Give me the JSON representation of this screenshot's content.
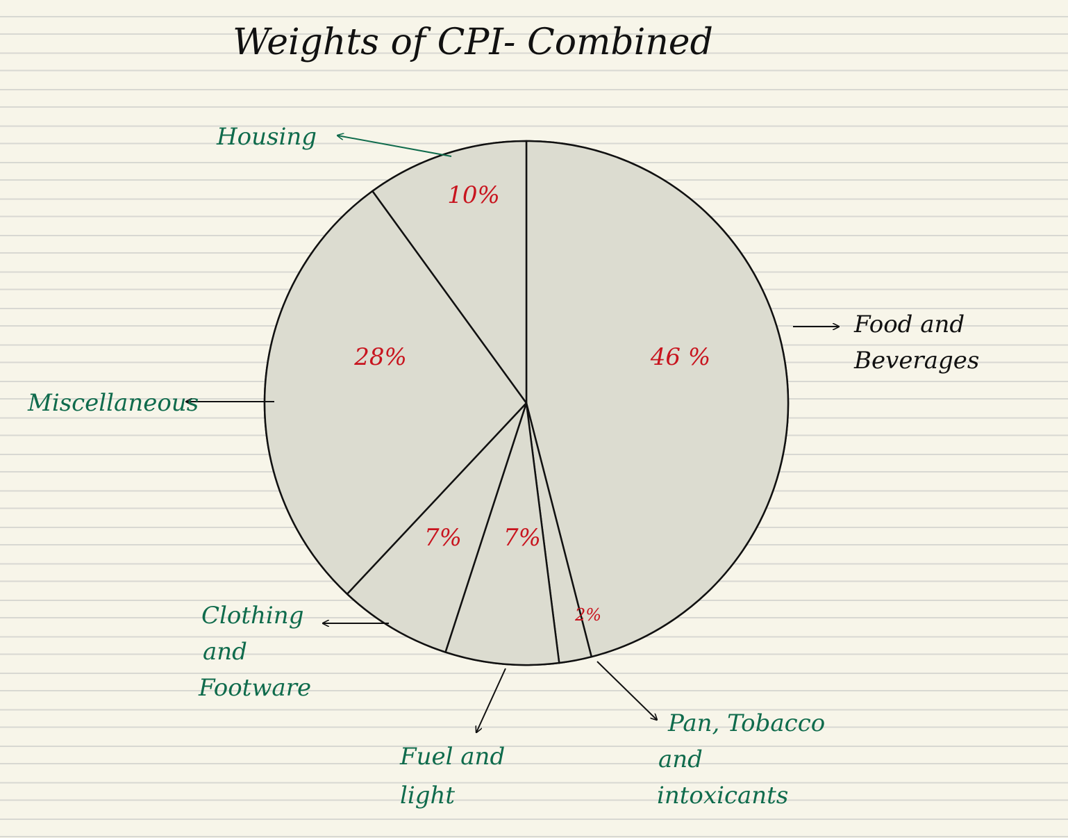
{
  "chart_data": {
    "type": "pie",
    "title": "Weights of CPI- Combined",
    "slices": [
      {
        "label": "Food and Beverages",
        "value": 46,
        "value_label": "46 %",
        "label_color": "#111111"
      },
      {
        "label": "Pan, Tobacco and intoxicants",
        "value": 2,
        "value_label": "2%",
        "label_color": "#0f6b4c"
      },
      {
        "label": "Fuel and light",
        "value": 7,
        "value_label": "7%",
        "label_color": "#0f6b4c"
      },
      {
        "label": "Clothing and Footware",
        "value": 7,
        "value_label": "7%",
        "label_color": "#0f6b4c"
      },
      {
        "label": "Miscellaneous",
        "value": 28,
        "value_label": "28%",
        "label_color": "#0f6b4c"
      },
      {
        "label": "Housing",
        "value": 10,
        "value_label": "10%",
        "label_color": "#0f6b4c"
      }
    ]
  },
  "colors": {
    "slice_fill": "#dcdcd0",
    "outline": "#111111",
    "percent_text": "#c8141e",
    "label_green": "#0f6b4c"
  }
}
